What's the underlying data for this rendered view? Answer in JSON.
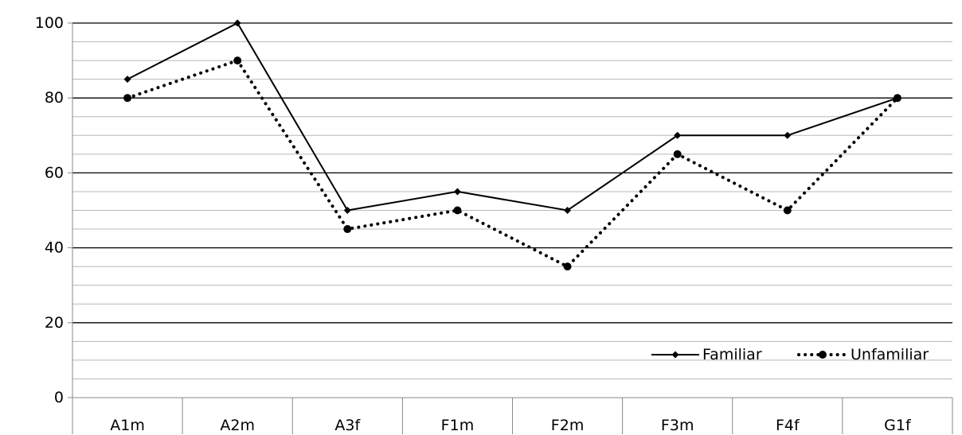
{
  "chart_data": {
    "type": "line",
    "title": "",
    "xlabel": "",
    "ylabel": "",
    "categories": [
      "A1m",
      "A2m",
      "A3f",
      "F1m",
      "F2m",
      "F3m",
      "F4f",
      "G1f"
    ],
    "ylim": [
      0,
      100
    ],
    "y_ticks": [
      "0",
      "20",
      "40",
      "60",
      "80",
      "100"
    ],
    "major_grid_step": 20,
    "minor_grid_step": 5,
    "grid": true,
    "legend_position": "bottom-right",
    "series": [
      {
        "name": "Familiar",
        "values": [
          85,
          100,
          50,
          55,
          50,
          70,
          70,
          80
        ],
        "line_style": "solid",
        "marker": "diamond",
        "color": "#000000"
      },
      {
        "name": "Unfamiliar",
        "values": [
          80,
          90,
          45,
          50,
          35,
          65,
          50,
          80
        ],
        "line_style": "dotted",
        "marker": "circle",
        "color": "#000000"
      }
    ]
  }
}
